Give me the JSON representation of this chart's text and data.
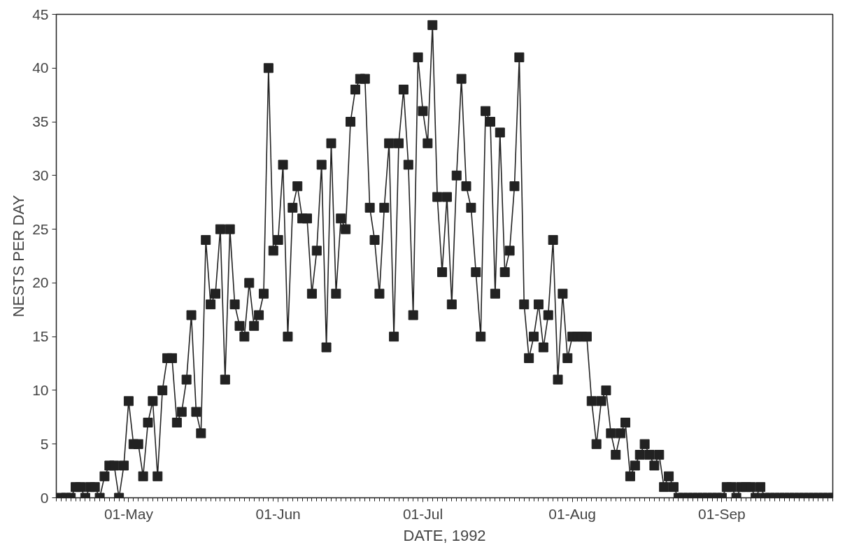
{
  "chart_data": {
    "type": "line",
    "xlabel": "DATE, 1992",
    "ylabel": "NESTS PER DAY",
    "x": [
      "1992-04-17",
      "1992-04-18",
      "1992-04-19",
      "1992-04-20",
      "1992-04-21",
      "1992-04-22",
      "1992-04-23",
      "1992-04-24",
      "1992-04-25",
      "1992-04-26",
      "1992-04-27",
      "1992-04-28",
      "1992-04-29",
      "1992-04-30",
      "1992-05-01",
      "1992-05-02",
      "1992-05-03",
      "1992-05-04",
      "1992-05-05",
      "1992-05-06",
      "1992-05-07",
      "1992-05-08",
      "1992-05-09",
      "1992-05-10",
      "1992-05-11",
      "1992-05-12",
      "1992-05-13",
      "1992-05-14",
      "1992-05-15",
      "1992-05-16",
      "1992-05-17",
      "1992-05-18",
      "1992-05-19",
      "1992-05-20",
      "1992-05-21",
      "1992-05-22",
      "1992-05-23",
      "1992-05-24",
      "1992-05-25",
      "1992-05-26",
      "1992-05-27",
      "1992-05-28",
      "1992-05-29",
      "1992-05-30",
      "1992-05-31",
      "1992-06-01",
      "1992-06-02",
      "1992-06-03",
      "1992-06-04",
      "1992-06-05",
      "1992-06-06",
      "1992-06-07",
      "1992-06-08",
      "1992-06-09",
      "1992-06-10",
      "1992-06-11",
      "1992-06-12",
      "1992-06-13",
      "1992-06-14",
      "1992-06-15",
      "1992-06-16",
      "1992-06-17",
      "1992-06-18",
      "1992-06-19",
      "1992-06-20",
      "1992-06-21",
      "1992-06-22",
      "1992-06-23",
      "1992-06-24",
      "1992-06-25",
      "1992-06-26",
      "1992-06-27",
      "1992-06-28",
      "1992-06-29",
      "1992-06-30",
      "1992-07-01",
      "1992-07-02",
      "1992-07-03",
      "1992-07-04",
      "1992-07-05",
      "1992-07-06",
      "1992-07-07",
      "1992-07-08",
      "1992-07-09",
      "1992-07-10",
      "1992-07-11",
      "1992-07-12",
      "1992-07-13",
      "1992-07-14",
      "1992-07-15",
      "1992-07-16",
      "1992-07-17",
      "1992-07-18",
      "1992-07-19",
      "1992-07-20",
      "1992-07-21",
      "1992-07-22",
      "1992-07-23",
      "1992-07-24",
      "1992-07-25",
      "1992-07-26",
      "1992-07-27",
      "1992-07-28",
      "1992-07-29",
      "1992-07-30",
      "1992-07-31",
      "1992-08-01",
      "1992-08-02",
      "1992-08-03",
      "1992-08-04",
      "1992-08-05",
      "1992-08-06",
      "1992-08-07",
      "1992-08-08",
      "1992-08-09",
      "1992-08-10",
      "1992-08-11",
      "1992-08-12",
      "1992-08-13",
      "1992-08-14",
      "1992-08-15",
      "1992-08-16",
      "1992-08-17",
      "1992-08-18",
      "1992-08-19",
      "1992-08-20",
      "1992-08-21",
      "1992-08-22",
      "1992-08-23",
      "1992-08-24",
      "1992-08-25",
      "1992-08-26",
      "1992-08-27",
      "1992-08-28",
      "1992-08-29",
      "1992-08-30",
      "1992-08-31",
      "1992-09-01",
      "1992-09-02",
      "1992-09-03",
      "1992-09-04",
      "1992-09-05",
      "1992-09-06",
      "1992-09-07",
      "1992-09-08",
      "1992-09-09",
      "1992-09-10",
      "1992-09-11",
      "1992-09-12",
      "1992-09-13",
      "1992-09-14",
      "1992-09-15",
      "1992-09-16",
      "1992-09-17",
      "1992-09-18",
      "1992-09-19",
      "1992-09-20",
      "1992-09-21",
      "1992-09-22",
      "1992-09-23",
      "1992-09-24"
    ],
    "series": [
      {
        "color": "#222222",
        "values": [
          0,
          0,
          0,
          1,
          1,
          0,
          1,
          1,
          0,
          2,
          3,
          3,
          0,
          3,
          9,
          5,
          5,
          2,
          7,
          9,
          2,
          10,
          13,
          13,
          7,
          8,
          11,
          17,
          8,
          6,
          24,
          18,
          19,
          25,
          11,
          25,
          18,
          16,
          15,
          20,
          16,
          17,
          19,
          40,
          23,
          24,
          31,
          15,
          27,
          29,
          26,
          26,
          19,
          23,
          31,
          14,
          33,
          19,
          26,
          25,
          35,
          38,
          39,
          39,
          27,
          24,
          19,
          27,
          33,
          15,
          33,
          38,
          31,
          17,
          41,
          36,
          33,
          44,
          28,
          21,
          28,
          18,
          30,
          39,
          29,
          27,
          21,
          15,
          36,
          35,
          19,
          34,
          21,
          23,
          29,
          41,
          18,
          13,
          15,
          18,
          14,
          17,
          24,
          11,
          19,
          13,
          15,
          15,
          15,
          15,
          9,
          5,
          9,
          10,
          6,
          4,
          6,
          7,
          2,
          3,
          4,
          5,
          4,
          3,
          4,
          1,
          2,
          1,
          0,
          0,
          0,
          0,
          0,
          0,
          0,
          0,
          0,
          0,
          1,
          1,
          0,
          1,
          1,
          1,
          0,
          1,
          0,
          0,
          0,
          0,
          0,
          0,
          0,
          0,
          0,
          0,
          0,
          0,
          0,
          0,
          0
        ]
      }
    ],
    "xlim": [
      "1992-04-16",
      "1992-09-24"
    ],
    "xticks": [
      {
        "value": "1992-05-01",
        "label": "01-May"
      },
      {
        "value": "1992-06-01",
        "label": "01-Jun"
      },
      {
        "value": "1992-07-01",
        "label": "01-Jul"
      },
      {
        "value": "1992-08-01",
        "label": "01-Aug"
      },
      {
        "value": "1992-09-01",
        "label": "01-Sep"
      }
    ],
    "ylim": [
      0,
      45
    ],
    "yticks": [
      0,
      5,
      10,
      15,
      20,
      25,
      30,
      35,
      40,
      45
    ],
    "grid": false,
    "marker": "square",
    "line_style": "solid"
  }
}
